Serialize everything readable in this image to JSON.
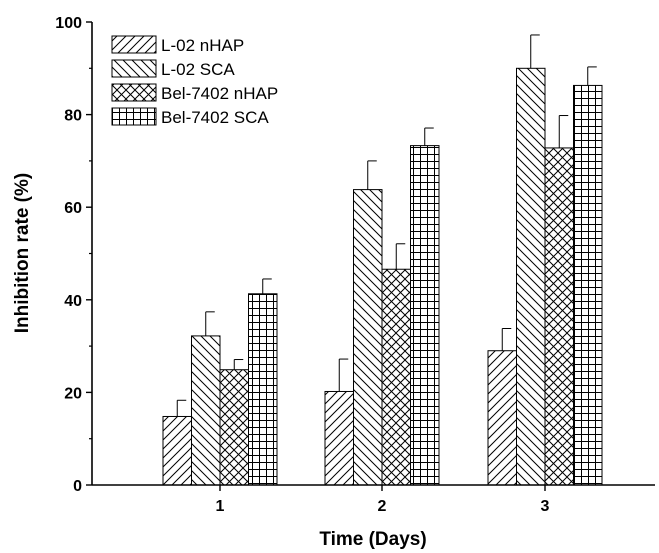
{
  "chart_data": {
    "type": "bar",
    "xlabel": "Time (Days)",
    "ylabel": "Inhibition rate (%)",
    "ylim": [
      0,
      100
    ],
    "yticks": [
      0,
      20,
      40,
      60,
      80,
      100
    ],
    "categories": [
      "1",
      "2",
      "3"
    ],
    "legend_position": "top-left",
    "grid": false,
    "series": [
      {
        "name": "L-02 nHAP",
        "pattern": "diag-up",
        "values": [
          14.8,
          20.2,
          29.0
        ],
        "errors": [
          3.5,
          7.0,
          4.8
        ]
      },
      {
        "name": "L-02 SCA",
        "pattern": "diag-down",
        "values": [
          32.2,
          63.8,
          90.0
        ],
        "errors": [
          5.2,
          6.2,
          7.2
        ]
      },
      {
        "name": "Bel-7402 nHAP",
        "pattern": "crosshatch",
        "values": [
          24.9,
          46.6,
          72.8
        ],
        "errors": [
          2.2,
          5.5,
          7.0
        ]
      },
      {
        "name": "Bel-7402 SCA",
        "pattern": "grid",
        "values": [
          41.3,
          73.3,
          86.3
        ],
        "errors": [
          3.2,
          3.8,
          4.0
        ]
      }
    ]
  }
}
